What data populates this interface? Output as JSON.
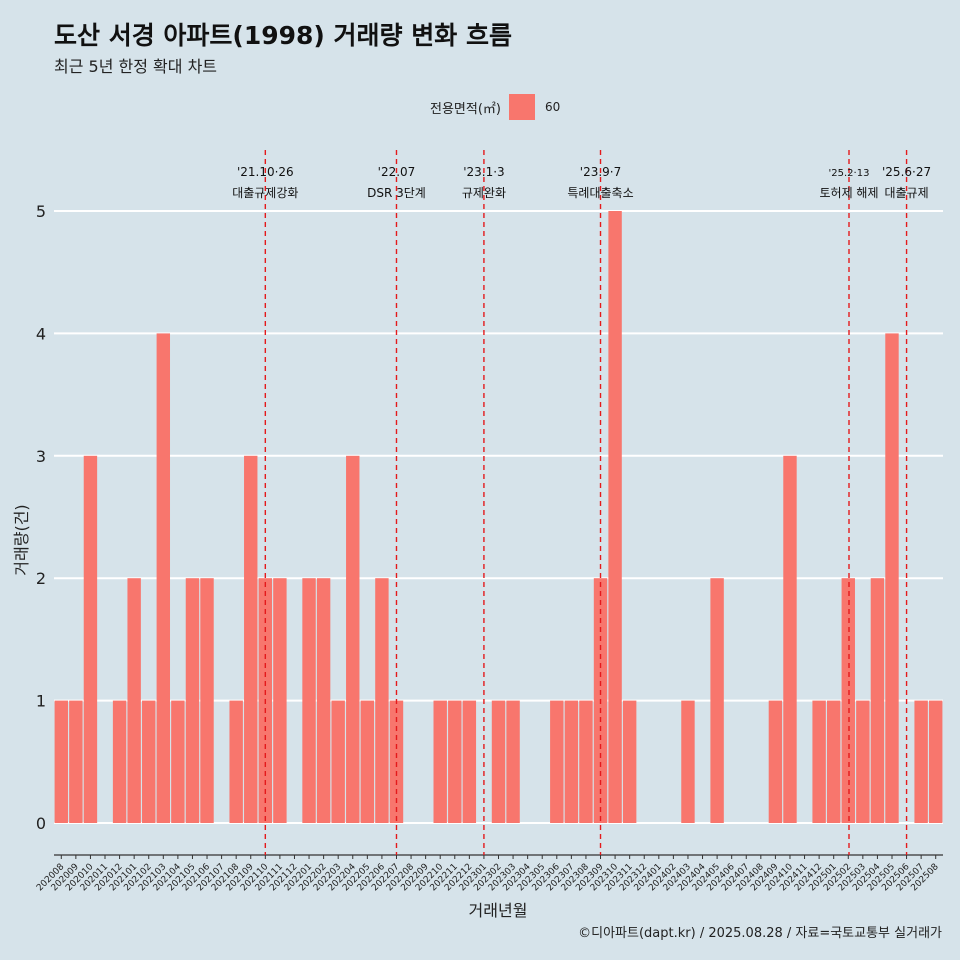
{
  "title": "도산 서경 아파트(1998) 거래량 변화 흐름",
  "subtitle": "최근 5년 한정 확대 차트",
  "legend": {
    "title": "전용면적(㎡)",
    "label": "60"
  },
  "caption": "©디아파트(dapt.kr) / 2025.08.28 / 자료=국토교통부 실거래가",
  "chart_data": {
    "type": "bar",
    "xlabel": "거래년월",
    "ylabel": "거래량(건)",
    "ylim": [
      0,
      5
    ],
    "yticks": [
      0,
      1,
      2,
      3,
      4,
      5
    ],
    "grid": true,
    "legend_position": "top",
    "bar_color": "#f8766d",
    "series": [
      {
        "name": "60"
      }
    ],
    "categories": [
      "202008",
      "202009",
      "202010",
      "202011",
      "202012",
      "202101",
      "202102",
      "202103",
      "202104",
      "202105",
      "202106",
      "202107",
      "202108",
      "202109",
      "202110",
      "202111",
      "202112",
      "202201",
      "202202",
      "202203",
      "202204",
      "202205",
      "202206",
      "202207",
      "202208",
      "202209",
      "202210",
      "202211",
      "202212",
      "202301",
      "202302",
      "202303",
      "202304",
      "202305",
      "202306",
      "202307",
      "202308",
      "202309",
      "202310",
      "202311",
      "202312",
      "202401",
      "202402",
      "202403",
      "202404",
      "202405",
      "202406",
      "202407",
      "202408",
      "202409",
      "202410",
      "202411",
      "202412",
      "202501",
      "202502",
      "202503",
      "202504",
      "202505",
      "202506",
      "202507",
      "202508"
    ],
    "values": [
      1,
      1,
      3,
      0,
      1,
      2,
      1,
      4,
      1,
      2,
      2,
      0,
      1,
      3,
      2,
      2,
      0,
      2,
      2,
      1,
      3,
      1,
      2,
      1,
      0,
      0,
      1,
      1,
      1,
      0,
      1,
      1,
      0,
      0,
      1,
      1,
      1,
      2,
      5,
      1,
      0,
      0,
      0,
      1,
      0,
      2,
      0,
      0,
      0,
      1,
      3,
      0,
      1,
      1,
      2,
      1,
      2,
      4,
      0,
      1,
      1
    ],
    "annotations": [
      {
        "category": "202110",
        "date": "'21.10·26",
        "text": "대출규제강화"
      },
      {
        "category": "202207",
        "date": "'22.07",
        "text": "DSR 3단계"
      },
      {
        "category": "202301",
        "date": "'23.1·3",
        "text": "규제완화"
      },
      {
        "category": "202309",
        "date": "'23.9·7",
        "text": "특례대출축소"
      },
      {
        "category": "202502",
        "date": "'25.2·13",
        "text": "토허제 해제"
      },
      {
        "category": "202506",
        "date": "'25.6·27",
        "text": "대출규제"
      }
    ]
  }
}
